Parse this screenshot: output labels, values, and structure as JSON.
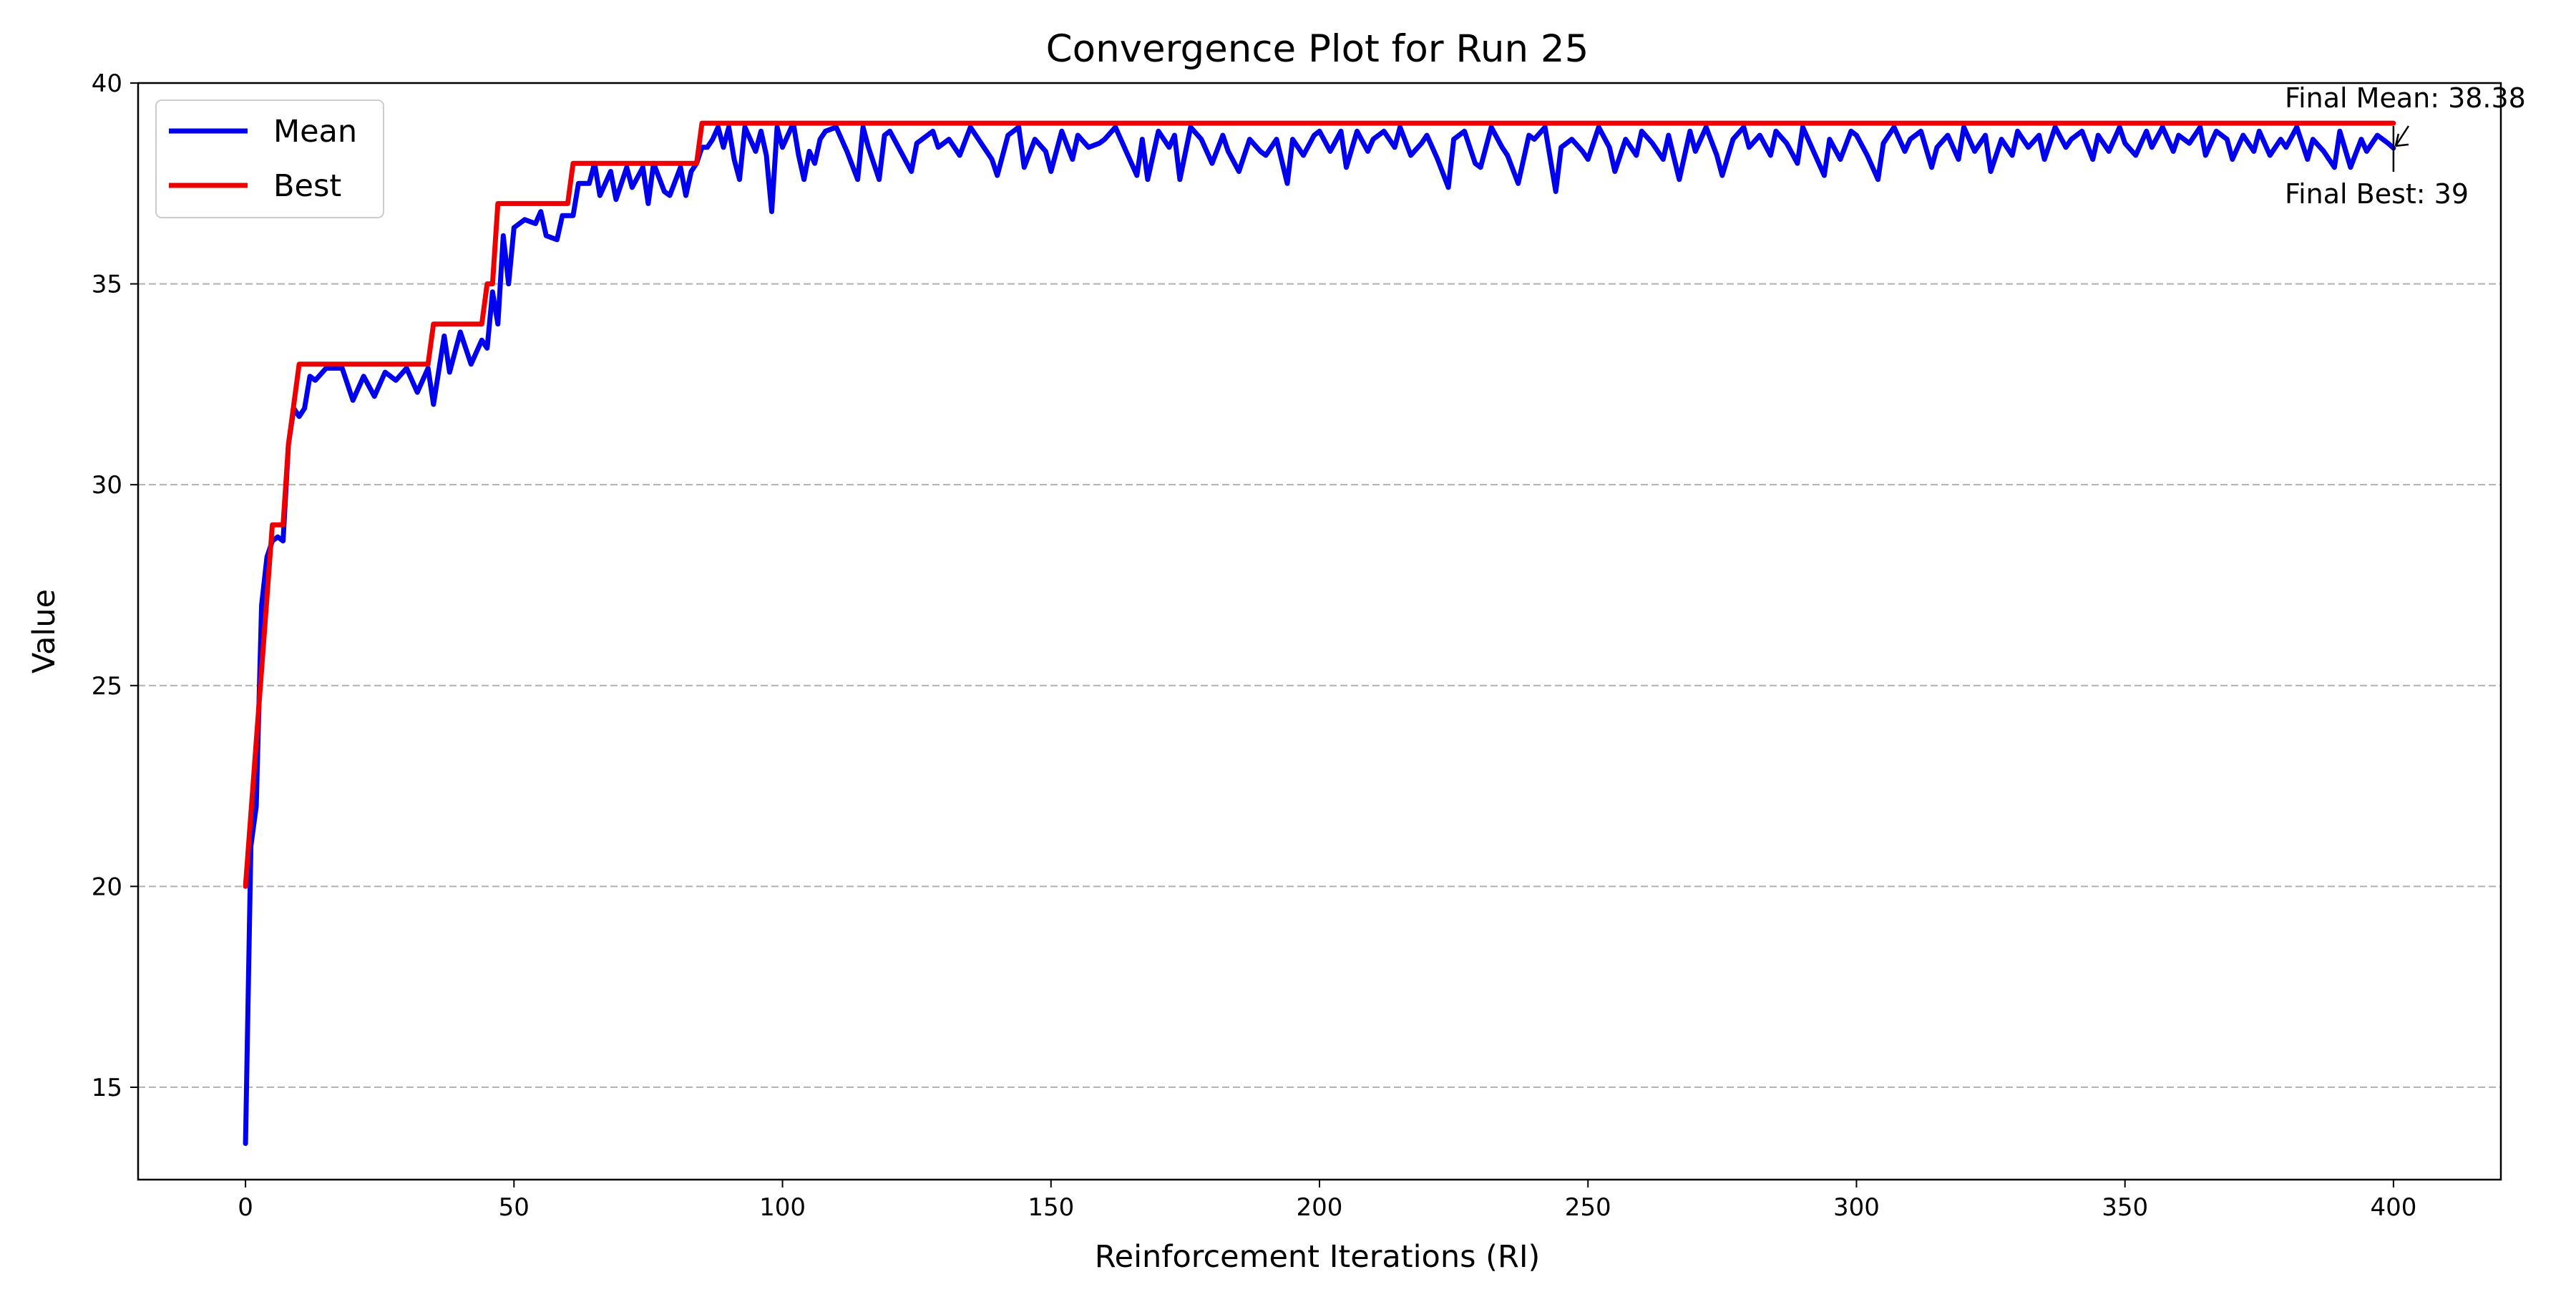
{
  "chart_data": {
    "type": "line",
    "title": "Convergence Plot for Run 25",
    "xlabel": "Reinforcement Iterations (RI)",
    "ylabel": "Value",
    "xlim": [
      -20,
      420
    ],
    "ylim": [
      12.7,
      40
    ],
    "xticks": [
      0,
      50,
      100,
      150,
      200,
      250,
      300,
      350,
      400
    ],
    "yticks": [
      15,
      20,
      25,
      30,
      35,
      40
    ],
    "grid": "horizontal dashed",
    "legend_position": "top-left",
    "colors": {
      "Mean": "#0000ee",
      "Best": "#ee0000"
    },
    "series": [
      {
        "name": "Mean",
        "points": [
          [
            0,
            13.6
          ],
          [
            1,
            21
          ],
          [
            2,
            22
          ],
          [
            3,
            27
          ],
          [
            4,
            28.2
          ],
          [
            5,
            28.6
          ],
          [
            6,
            28.7
          ],
          [
            7,
            28.6
          ],
          [
            8,
            31
          ],
          [
            9,
            31.9
          ],
          [
            10,
            31.7
          ],
          [
            11,
            31.9
          ],
          [
            12,
            32.7
          ],
          [
            13,
            32.6
          ],
          [
            15,
            32.9
          ],
          [
            18,
            32.9
          ],
          [
            20,
            32.1
          ],
          [
            22,
            32.7
          ],
          [
            24,
            32.2
          ],
          [
            26,
            32.8
          ],
          [
            28,
            32.6
          ],
          [
            30,
            32.9
          ],
          [
            32,
            32.3
          ],
          [
            34,
            32.9
          ],
          [
            35,
            32
          ],
          [
            37,
            33.7
          ],
          [
            38,
            32.8
          ],
          [
            40,
            33.8
          ],
          [
            42,
            33
          ],
          [
            44,
            33.6
          ],
          [
            45,
            33.4
          ],
          [
            46,
            34.8
          ],
          [
            47,
            34
          ],
          [
            48,
            36.2
          ],
          [
            49,
            35
          ],
          [
            50,
            36.4
          ],
          [
            52,
            36.6
          ],
          [
            54,
            36.5
          ],
          [
            55,
            36.8
          ],
          [
            56,
            36.2
          ],
          [
            58,
            36.1
          ],
          [
            59,
            36.7
          ],
          [
            61,
            36.7
          ],
          [
            62,
            37.5
          ],
          [
            64,
            37.5
          ],
          [
            65,
            38
          ],
          [
            66,
            37.2
          ],
          [
            68,
            37.8
          ],
          [
            69,
            37.1
          ],
          [
            71,
            37.9
          ],
          [
            72,
            37.4
          ],
          [
            74,
            37.9
          ],
          [
            75,
            37
          ],
          [
            76,
            38
          ],
          [
            78,
            37.3
          ],
          [
            79,
            37.2
          ],
          [
            81,
            37.9
          ],
          [
            82,
            37.2
          ],
          [
            83,
            37.8
          ],
          [
            84,
            38
          ],
          [
            85,
            38.4
          ],
          [
            86,
            38.4
          ],
          [
            87,
            38.6
          ],
          [
            88,
            38.9
          ],
          [
            89,
            38.4
          ],
          [
            90,
            38.9
          ],
          [
            91,
            38.1
          ],
          [
            92,
            37.6
          ],
          [
            93,
            38.9
          ],
          [
            94,
            38.6
          ],
          [
            95,
            38.3
          ],
          [
            96,
            38.8
          ],
          [
            97,
            38.2
          ],
          [
            98,
            36.8
          ],
          [
            99,
            38.9
          ],
          [
            100,
            38.4
          ],
          [
            102,
            39
          ],
          [
            103,
            38.2
          ],
          [
            104,
            37.6
          ],
          [
            105,
            38.3
          ],
          [
            106,
            38
          ],
          [
            107,
            38.6
          ],
          [
            108,
            38.8
          ],
          [
            110,
            38.9
          ],
          [
            112,
            38.3
          ],
          [
            114,
            37.6
          ],
          [
            115,
            38.9
          ],
          [
            116,
            38.4
          ],
          [
            118,
            37.6
          ],
          [
            119,
            38.7
          ],
          [
            120,
            38.8
          ],
          [
            122,
            38.3
          ],
          [
            124,
            37.8
          ],
          [
            125,
            38.5
          ],
          [
            126,
            38.6
          ],
          [
            128,
            38.8
          ],
          [
            129,
            38.4
          ],
          [
            131,
            38.6
          ],
          [
            133,
            38.2
          ],
          [
            135,
            38.9
          ],
          [
            137,
            38.5
          ],
          [
            139,
            38.1
          ],
          [
            140,
            37.7
          ],
          [
            142,
            38.7
          ],
          [
            144,
            38.9
          ],
          [
            145,
            37.9
          ],
          [
            147,
            38.6
          ],
          [
            149,
            38.3
          ],
          [
            150,
            37.8
          ],
          [
            152,
            38.8
          ],
          [
            154,
            38.1
          ],
          [
            155,
            38.7
          ],
          [
            157,
            38.4
          ],
          [
            159,
            38.5
          ],
          [
            160,
            38.6
          ],
          [
            162,
            38.9
          ],
          [
            164,
            38.3
          ],
          [
            166,
            37.7
          ],
          [
            167,
            38.6
          ],
          [
            168,
            37.6
          ],
          [
            170,
            38.8
          ],
          [
            172,
            38.4
          ],
          [
            173,
            38.7
          ],
          [
            174,
            37.6
          ],
          [
            176,
            38.9
          ],
          [
            178,
            38.6
          ],
          [
            180,
            38
          ],
          [
            182,
            38.7
          ],
          [
            183,
            38.3
          ],
          [
            185,
            37.8
          ],
          [
            187,
            38.6
          ],
          [
            189,
            38.3
          ],
          [
            190,
            38.2
          ],
          [
            192,
            38.6
          ],
          [
            194,
            37.5
          ],
          [
            195,
            38.6
          ],
          [
            197,
            38.2
          ],
          [
            199,
            38.7
          ],
          [
            200,
            38.8
          ],
          [
            202,
            38.3
          ],
          [
            204,
            38.8
          ],
          [
            205,
            37.9
          ],
          [
            207,
            38.8
          ],
          [
            209,
            38.3
          ],
          [
            210,
            38.6
          ],
          [
            212,
            38.8
          ],
          [
            214,
            38.4
          ],
          [
            215,
            38.9
          ],
          [
            217,
            38.2
          ],
          [
            219,
            38.5
          ],
          [
            220,
            38.7
          ],
          [
            222,
            38.1
          ],
          [
            224,
            37.4
          ],
          [
            225,
            38.6
          ],
          [
            227,
            38.8
          ],
          [
            229,
            38
          ],
          [
            230,
            37.9
          ],
          [
            232,
            38.9
          ],
          [
            234,
            38.4
          ],
          [
            235,
            38.2
          ],
          [
            237,
            37.5
          ],
          [
            239,
            38.7
          ],
          [
            240,
            38.6
          ],
          [
            242,
            38.9
          ],
          [
            244,
            37.3
          ],
          [
            245,
            38.4
          ],
          [
            247,
            38.6
          ],
          [
            249,
            38.3
          ],
          [
            250,
            38.1
          ],
          [
            252,
            38.9
          ],
          [
            254,
            38.4
          ],
          [
            255,
            37.8
          ],
          [
            257,
            38.6
          ],
          [
            259,
            38.2
          ],
          [
            260,
            38.8
          ],
          [
            262,
            38.5
          ],
          [
            264,
            38.1
          ],
          [
            265,
            38.7
          ],
          [
            267,
            37.6
          ],
          [
            269,
            38.8
          ],
          [
            270,
            38.3
          ],
          [
            272,
            38.9
          ],
          [
            274,
            38.2
          ],
          [
            275,
            37.7
          ],
          [
            277,
            38.6
          ],
          [
            279,
            38.9
          ],
          [
            280,
            38.4
          ],
          [
            282,
            38.7
          ],
          [
            284,
            38.2
          ],
          [
            285,
            38.8
          ],
          [
            287,
            38.5
          ],
          [
            289,
            38
          ],
          [
            290,
            38.9
          ],
          [
            292,
            38.3
          ],
          [
            294,
            37.7
          ],
          [
            295,
            38.6
          ],
          [
            297,
            38.1
          ],
          [
            299,
            38.8
          ],
          [
            300,
            38.7
          ],
          [
            302,
            38.2
          ],
          [
            304,
            37.6
          ],
          [
            305,
            38.5
          ],
          [
            307,
            38.9
          ],
          [
            309,
            38.3
          ],
          [
            310,
            38.6
          ],
          [
            312,
            38.8
          ],
          [
            314,
            37.9
          ],
          [
            315,
            38.4
          ],
          [
            317,
            38.7
          ],
          [
            319,
            38.1
          ],
          [
            320,
            38.9
          ],
          [
            322,
            38.3
          ],
          [
            324,
            38.7
          ],
          [
            325,
            37.8
          ],
          [
            327,
            38.6
          ],
          [
            329,
            38.2
          ],
          [
            330,
            38.8
          ],
          [
            332,
            38.4
          ],
          [
            334,
            38.7
          ],
          [
            335,
            38.1
          ],
          [
            337,
            38.9
          ],
          [
            339,
            38.4
          ],
          [
            340,
            38.6
          ],
          [
            342,
            38.8
          ],
          [
            344,
            38.1
          ],
          [
            345,
            38.7
          ],
          [
            347,
            38.3
          ],
          [
            349,
            38.9
          ],
          [
            350,
            38.5
          ],
          [
            352,
            38.2
          ],
          [
            354,
            38.8
          ],
          [
            355,
            38.4
          ],
          [
            357,
            38.9
          ],
          [
            359,
            38.3
          ],
          [
            360,
            38.7
          ],
          [
            362,
            38.5
          ],
          [
            364,
            38.9
          ],
          [
            365,
            38.2
          ],
          [
            367,
            38.8
          ],
          [
            369,
            38.6
          ],
          [
            370,
            38.1
          ],
          [
            372,
            38.7
          ],
          [
            374,
            38.3
          ],
          [
            375,
            38.8
          ],
          [
            377,
            38.2
          ],
          [
            379,
            38.6
          ],
          [
            380,
            38.4
          ],
          [
            382,
            38.9
          ],
          [
            384,
            38.1
          ],
          [
            385,
            38.6
          ],
          [
            387,
            38.3
          ],
          [
            389,
            37.9
          ],
          [
            390,
            38.8
          ],
          [
            392,
            37.9
          ],
          [
            394,
            38.6
          ],
          [
            395,
            38.3
          ],
          [
            397,
            38.7
          ],
          [
            399,
            38.5
          ],
          [
            400,
            38.38
          ]
        ]
      },
      {
        "name": "Best",
        "points": [
          [
            0,
            20
          ],
          [
            5,
            29
          ],
          [
            7,
            29
          ],
          [
            8,
            31
          ],
          [
            10,
            33
          ],
          [
            34,
            33
          ],
          [
            35,
            34
          ],
          [
            44,
            34
          ],
          [
            45,
            35
          ],
          [
            46,
            35
          ],
          [
            47,
            37
          ],
          [
            60,
            37
          ],
          [
            61,
            38
          ],
          [
            84,
            38
          ],
          [
            85,
            39
          ],
          [
            400,
            39
          ]
        ]
      }
    ],
    "annotations": [
      {
        "text": "Final Mean: 38.38",
        "x": 400,
        "y": 38.38
      },
      {
        "text": "Final Best: 39",
        "x": 400,
        "y": 39
      }
    ]
  }
}
